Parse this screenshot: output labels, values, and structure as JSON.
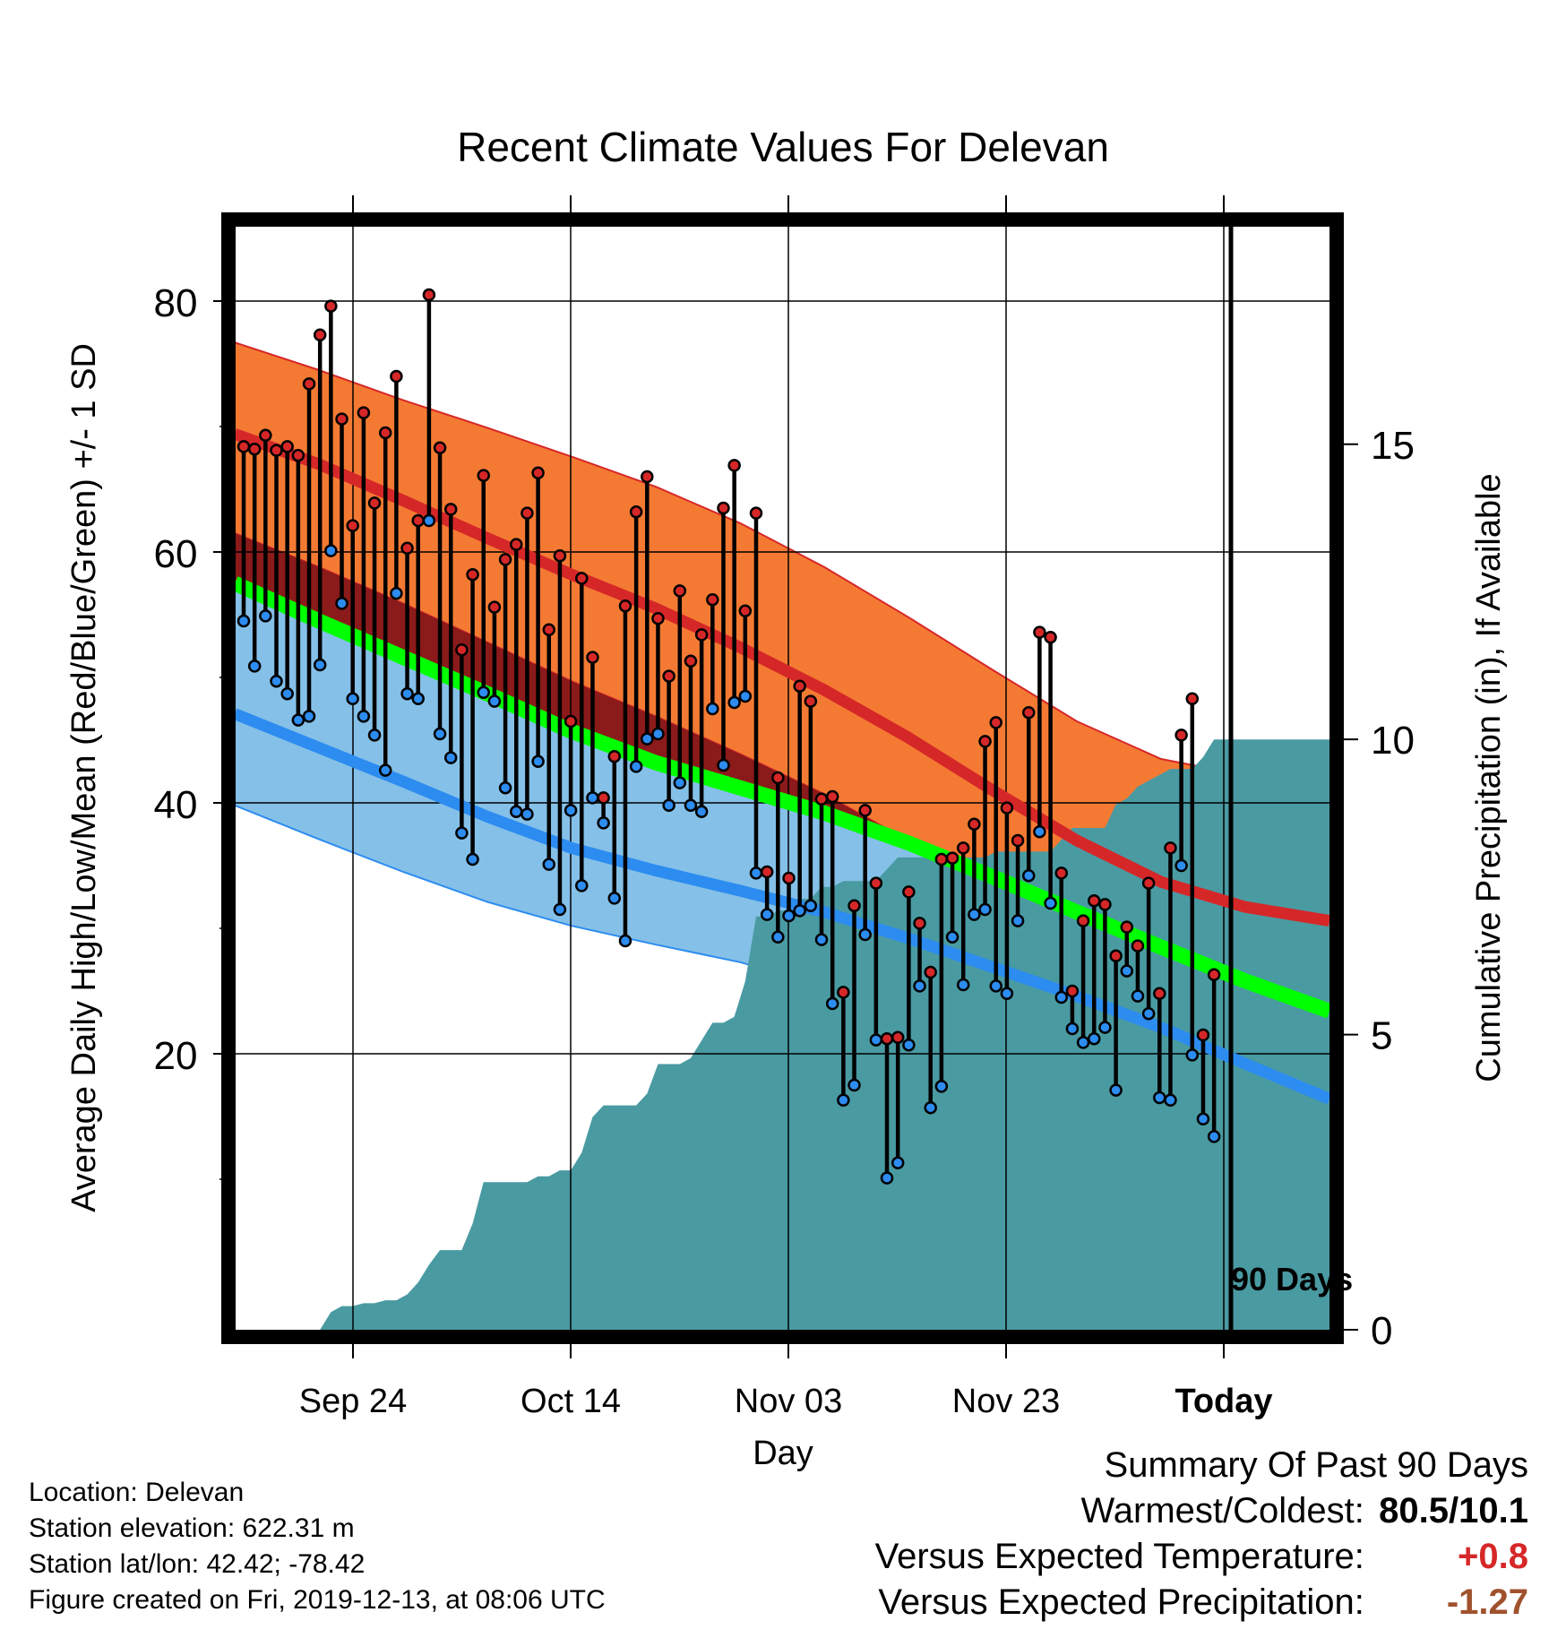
{
  "chart_data": {
    "type": "line",
    "title": "Recent Climate Values For Delevan",
    "xlabel": "Day",
    "ylabel": "Average Daily High/Low/Mean (Red/Blue/Green) +/- 1 SD",
    "y2label": "Cumulative Precipitation (in), If Available",
    "xtick_labels": [
      "Sep 24",
      "Oct 14",
      "Nov 03",
      "Nov 23",
      "Today"
    ],
    "ylim": [
      -2,
      86
    ],
    "y_ticks": [
      20,
      40,
      60,
      80
    ],
    "y2lim": [
      0,
      18.7
    ],
    "y2_ticks": [
      0,
      5,
      10,
      15
    ],
    "grid": true,
    "today_marker": "90 Days",
    "colors": {
      "high": "#d62728",
      "high_band": "#f47a33",
      "low": "#2c8cf0",
      "low_band": "#85c0e8",
      "mean": "#00ff00",
      "deficit": "#8b1a1a",
      "precip": "#4a9aa2"
    },
    "series": [
      {
        "name": "High",
        "values": [
          68.4,
          68.2,
          69.3,
          68.1,
          68.4,
          67.7,
          73.4,
          77.3,
          79.6,
          70.6,
          62.1,
          71.1,
          63.9,
          69.5,
          74.0,
          60.3,
          62.5,
          80.5,
          68.3,
          63.4,
          52.2,
          58.2,
          66.1,
          55.6,
          59.4,
          60.6,
          63.1,
          66.3,
          53.8,
          59.7,
          46.5,
          57.9,
          51.6,
          40.4,
          43.7,
          55.7,
          63.2,
          66.0,
          54.7,
          50.1,
          56.9,
          51.3,
          53.4,
          56.2,
          63.5,
          66.9,
          55.3,
          63.1,
          34.5,
          42.0,
          34.0,
          49.3,
          48.1,
          40.3,
          40.5,
          24.9,
          31.8,
          39.4,
          33.6,
          21.2,
          21.3,
          32.9,
          30.4,
          26.5,
          35.5,
          35.6,
          36.4,
          38.3,
          44.9,
          46.4,
          39.6,
          37.0,
          47.2,
          53.6,
          53.2,
          34.4,
          25.0,
          30.6,
          32.2,
          31.9,
          27.8,
          30.1,
          28.6,
          33.6,
          24.8,
          36.4,
          45.4,
          48.3,
          21.5,
          26.3
        ]
      },
      {
        "name": "Low",
        "values": [
          54.5,
          50.9,
          54.9,
          49.7,
          48.7,
          46.6,
          46.9,
          51.0,
          60.1,
          55.9,
          48.3,
          46.9,
          45.4,
          42.6,
          56.7,
          48.7,
          48.3,
          62.5,
          45.5,
          43.6,
          37.6,
          35.5,
          48.8,
          48.1,
          41.2,
          39.3,
          39.1,
          43.3,
          35.1,
          31.5,
          39.4,
          33.4,
          40.4,
          38.4,
          32.4,
          29.0,
          42.9,
          45.1,
          45.5,
          39.8,
          41.6,
          39.8,
          39.3,
          47.5,
          43.0,
          48.0,
          48.5,
          34.4,
          31.1,
          29.3,
          31.0,
          31.4,
          31.8,
          29.1,
          24.0,
          16.3,
          17.5,
          29.5,
          21.1,
          10.1,
          11.3,
          20.7,
          25.4,
          15.7,
          17.4,
          29.3,
          25.5,
          31.1,
          31.5,
          25.4,
          24.8,
          30.6,
          34.2,
          37.7,
          32.0,
          24.5,
          22.0,
          20.9,
          21.2,
          22.1,
          17.1,
          26.6,
          24.6,
          23.2,
          16.5,
          16.3,
          35.0,
          19.9,
          14.8,
          13.4
        ]
      },
      {
        "name": "Expected High",
        "values": [
          69.4,
          67.0,
          64.1,
          61.1,
          58.2,
          55.5,
          52.4,
          49.0,
          45.2,
          41.0,
          37.0,
          33.7,
          31.7,
          30.6
        ]
      },
      {
        "name": "Expected High +1 SD",
        "values": [
          76.7,
          74.5,
          72.1,
          69.9,
          67.6,
          65.2,
          62.3,
          58.8,
          54.8,
          50.6,
          46.5,
          43.5,
          42.2,
          41.7
        ]
      },
      {
        "name": "Expected High -1 SD",
        "values": [
          61.5,
          58.8,
          55.9,
          52.8,
          49.7,
          46.9,
          43.9,
          40.7,
          37.0,
          32.9,
          29.0,
          25.8,
          22.9,
          20.1
        ]
      },
      {
        "name": "Expected Mean",
        "values": [
          57.5,
          54.5,
          51.6,
          48.7,
          45.7,
          43.2,
          41.2,
          39.2,
          36.8,
          34.1,
          31.3,
          28.5,
          25.8,
          23.4
        ]
      },
      {
        "name": "Expected Low",
        "values": [
          47.1,
          44.4,
          41.7,
          38.9,
          36.4,
          34.6,
          33.0,
          31.3,
          29.2,
          26.9,
          24.6,
          22.1,
          19.2,
          16.4
        ]
      },
      {
        "name": "Expected Low -1 SD",
        "values": [
          39.8,
          37.1,
          34.5,
          32.1,
          30.2,
          28.7,
          27.3,
          25.4,
          23.2,
          20.9,
          17.4,
          13.3,
          9.3,
          5.7
        ]
      },
      {
        "name": "Cumulative Precipitation",
        "values": [
          0.0,
          0.0,
          0.0,
          0.0,
          0.0,
          0.0,
          0.0,
          0.0,
          0.3,
          0.4,
          0.4,
          0.45,
          0.45,
          0.5,
          0.5,
          0.6,
          0.8,
          1.1,
          1.35,
          1.35,
          1.35,
          1.8,
          2.5,
          2.5,
          2.5,
          2.5,
          2.5,
          2.6,
          2.6,
          2.7,
          2.7,
          3.0,
          3.6,
          3.8,
          3.8,
          3.8,
          3.8,
          4.0,
          4.5,
          4.5,
          4.5,
          4.6,
          4.9,
          5.2,
          5.2,
          5.3,
          5.9,
          7.0,
          7.0,
          7.1,
          7.1,
          7.3,
          7.3,
          7.5,
          7.5,
          7.6,
          7.6,
          7.6,
          7.6,
          7.8,
          8.0,
          8.0,
          8.0,
          8.0,
          8.0,
          8.0,
          8.0,
          8.0,
          8.0,
          8.1,
          8.1,
          8.1,
          8.1,
          8.1,
          8.1,
          8.3,
          8.5,
          8.5,
          8.5,
          8.5,
          8.9,
          9.0,
          9.2,
          9.3,
          9.4,
          9.5,
          9.5,
          9.5,
          9.7,
          10.0
        ]
      }
    ]
  },
  "info": {
    "location": "Location: Delevan",
    "elevation": "Station elevation: 622.31 m",
    "latlon": "Station lat/lon: 42.42; -78.42",
    "created": "Figure created on Fri, 2019-12-13, at 08:06 UTC"
  },
  "summary": {
    "title": "Summary Of Past 90 Days",
    "warmest_label": "Warmest/Coldest:",
    "warmest_value": "80.5/10.1",
    "temp_label": "Versus Expected Temperature:",
    "temp_value": "+0.8",
    "temp_color": "#d62728",
    "precip_label": "Versus Expected Precipitation:",
    "precip_value": "-1.27",
    "precip_color": "#a0522d"
  }
}
